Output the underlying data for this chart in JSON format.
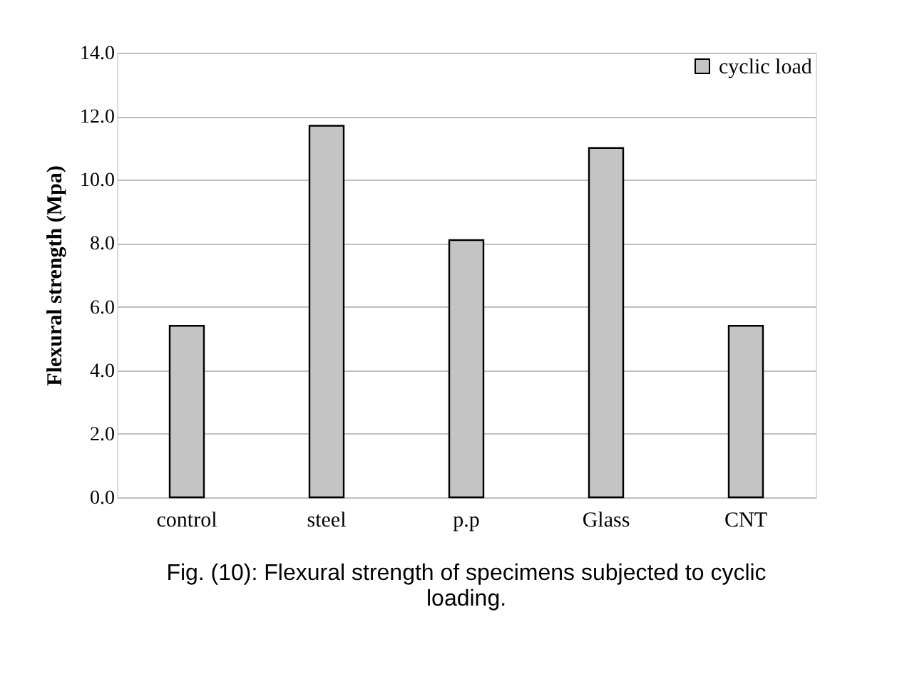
{
  "chart_data": {
    "type": "bar",
    "ylabel": "Flexural strength (Mpa)",
    "categories": [
      "control",
      "steel",
      "p.p",
      "Glass",
      "CNT"
    ],
    "series": [
      {
        "name": "cyclic load",
        "color": "#c4c4c4",
        "values": [
          5.4,
          11.7,
          8.1,
          11.0,
          5.4
        ]
      }
    ],
    "ylim": [
      0,
      14
    ],
    "yticks": [
      {
        "value": 0,
        "label": "0.0"
      },
      {
        "value": 2,
        "label": "2.0"
      },
      {
        "value": 4,
        "label": "4.0"
      },
      {
        "value": 6,
        "label": "6.0"
      },
      {
        "value": 8,
        "label": "8.0"
      },
      {
        "value": 10,
        "label": "10.0"
      },
      {
        "value": 12,
        "label": "12.0"
      },
      {
        "value": 14,
        "label": "14.0"
      }
    ],
    "grid": "y",
    "legend": "top right",
    "annotations": [
      "Fig. (10): Flexural strength of specimens subjected to cyclic loading."
    ]
  }
}
